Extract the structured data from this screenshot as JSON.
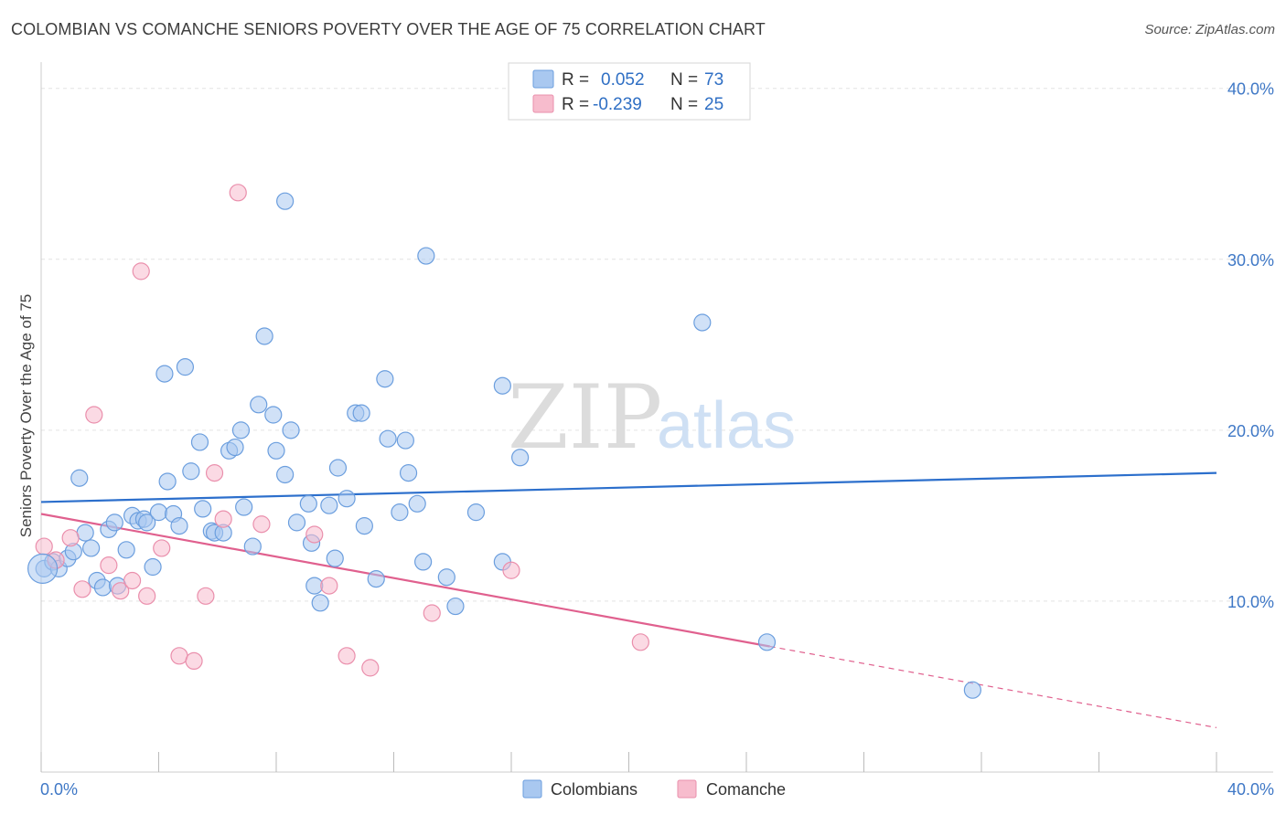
{
  "title": "COLOMBIAN VS COMANCHE SENIORS POVERTY OVER THE AGE OF 75 CORRELATION CHART",
  "source": "Source: ZipAtlas.com",
  "watermark": {
    "zip": "ZIP",
    "atlas": "atlas"
  },
  "colors": {
    "colombians_fill": "#a9c8f0",
    "colombians_stroke": "#6b9ede",
    "colombians_line": "#2c6fcc",
    "comanche_fill": "#f7bccd",
    "comanche_stroke": "#ea8fac",
    "comanche_line": "#e0608e"
  },
  "legend": {
    "rows": [
      {
        "r_label": "R =",
        "r_value": "0.052",
        "n_label": "N =",
        "n_value": "73"
      },
      {
        "r_label": "R =",
        "r_value": "-0.239",
        "n_label": "N =",
        "n_value": "25"
      }
    ]
  },
  "chart_data": {
    "type": "scatter",
    "title": "COLOMBIAN VS COMANCHE SENIORS POVERTY OVER THE AGE OF 75 CORRELATION CHART",
    "xlabel": "",
    "ylabel": "Seniors Poverty Over the Age of 75",
    "xlim": [
      0,
      40
    ],
    "ylim": [
      0,
      41
    ],
    "x_tick_labels": [
      "0.0%",
      "40.0%"
    ],
    "y_ticks": [
      10,
      20,
      30,
      40
    ],
    "y_tick_labels": [
      "10.0%",
      "20.0%",
      "30.0%",
      "40.0%"
    ],
    "grid": true,
    "legend_position": "top-center",
    "series": [
      {
        "name": "Colombians",
        "r": 0.052,
        "n": 73,
        "trend": {
          "x": [
            0,
            40
          ],
          "y": [
            15.8,
            17.5
          ],
          "solid_to": 40
        },
        "points": [
          [
            0.1,
            11.9
          ],
          [
            0.4,
            12.3
          ],
          [
            0.6,
            11.9
          ],
          [
            0.9,
            12.5
          ],
          [
            1.1,
            12.9
          ],
          [
            1.3,
            17.2
          ],
          [
            1.5,
            14.0
          ],
          [
            1.7,
            13.1
          ],
          [
            1.9,
            11.2
          ],
          [
            2.1,
            10.8
          ],
          [
            2.3,
            14.2
          ],
          [
            2.5,
            14.6
          ],
          [
            2.6,
            10.9
          ],
          [
            2.9,
            13.0
          ],
          [
            3.1,
            15.0
          ],
          [
            3.3,
            14.7
          ],
          [
            3.5,
            14.8
          ],
          [
            3.6,
            14.6
          ],
          [
            3.8,
            12.0
          ],
          [
            4.0,
            15.2
          ],
          [
            4.2,
            23.3
          ],
          [
            4.3,
            17.0
          ],
          [
            4.5,
            15.1
          ],
          [
            4.7,
            14.4
          ],
          [
            4.9,
            23.7
          ],
          [
            5.1,
            17.6
          ],
          [
            5.4,
            19.3
          ],
          [
            5.5,
            15.4
          ],
          [
            5.8,
            14.1
          ],
          [
            5.9,
            14.0
          ],
          [
            6.2,
            14.0
          ],
          [
            6.4,
            18.8
          ],
          [
            6.6,
            19.0
          ],
          [
            6.8,
            20.0
          ],
          [
            6.9,
            15.5
          ],
          [
            7.2,
            13.2
          ],
          [
            7.4,
            21.5
          ],
          [
            7.6,
            25.5
          ],
          [
            7.9,
            20.9
          ],
          [
            8.0,
            18.8
          ],
          [
            8.3,
            17.4
          ],
          [
            8.3,
            33.4
          ],
          [
            8.5,
            20.0
          ],
          [
            8.7,
            14.6
          ],
          [
            9.1,
            15.7
          ],
          [
            9.2,
            13.4
          ],
          [
            9.3,
            10.9
          ],
          [
            9.5,
            9.9
          ],
          [
            9.8,
            15.6
          ],
          [
            10.0,
            12.5
          ],
          [
            10.1,
            17.8
          ],
          [
            10.4,
            16.0
          ],
          [
            10.7,
            21.0
          ],
          [
            10.9,
            21.0
          ],
          [
            11.0,
            14.4
          ],
          [
            11.4,
            11.3
          ],
          [
            11.7,
            23.0
          ],
          [
            11.8,
            19.5
          ],
          [
            12.2,
            15.2
          ],
          [
            12.4,
            19.4
          ],
          [
            12.5,
            17.5
          ],
          [
            12.8,
            15.7
          ],
          [
            13.0,
            12.3
          ],
          [
            13.1,
            30.2
          ],
          [
            13.8,
            11.4
          ],
          [
            14.1,
            9.7
          ],
          [
            14.8,
            15.2
          ],
          [
            15.7,
            12.3
          ],
          [
            15.7,
            22.6
          ],
          [
            16.3,
            18.4
          ],
          [
            22.5,
            26.3
          ],
          [
            24.7,
            7.6
          ],
          [
            31.7,
            4.8
          ]
        ]
      },
      {
        "name": "Comanche",
        "r": -0.239,
        "n": 25,
        "trend": {
          "x": [
            0,
            40
          ],
          "y": [
            15.1,
            2.6
          ],
          "solid_to": 24.8
        },
        "points": [
          [
            0.1,
            13.2
          ],
          [
            0.5,
            12.4
          ],
          [
            1.0,
            13.7
          ],
          [
            1.4,
            10.7
          ],
          [
            1.8,
            20.9
          ],
          [
            2.3,
            12.1
          ],
          [
            2.7,
            10.6
          ],
          [
            3.1,
            11.2
          ],
          [
            3.4,
            29.3
          ],
          [
            3.6,
            10.3
          ],
          [
            4.1,
            13.1
          ],
          [
            4.7,
            6.8
          ],
          [
            5.2,
            6.5
          ],
          [
            5.6,
            10.3
          ],
          [
            5.9,
            17.5
          ],
          [
            6.2,
            14.8
          ],
          [
            6.7,
            33.9
          ],
          [
            7.5,
            14.5
          ],
          [
            9.3,
            13.9
          ],
          [
            9.8,
            10.9
          ],
          [
            10.4,
            6.8
          ],
          [
            11.2,
            6.1
          ],
          [
            13.3,
            9.3
          ],
          [
            16.0,
            11.8
          ],
          [
            20.4,
            7.6
          ]
        ]
      }
    ]
  },
  "bottom_legend": {
    "items": [
      "Colombians",
      "Comanche"
    ]
  }
}
